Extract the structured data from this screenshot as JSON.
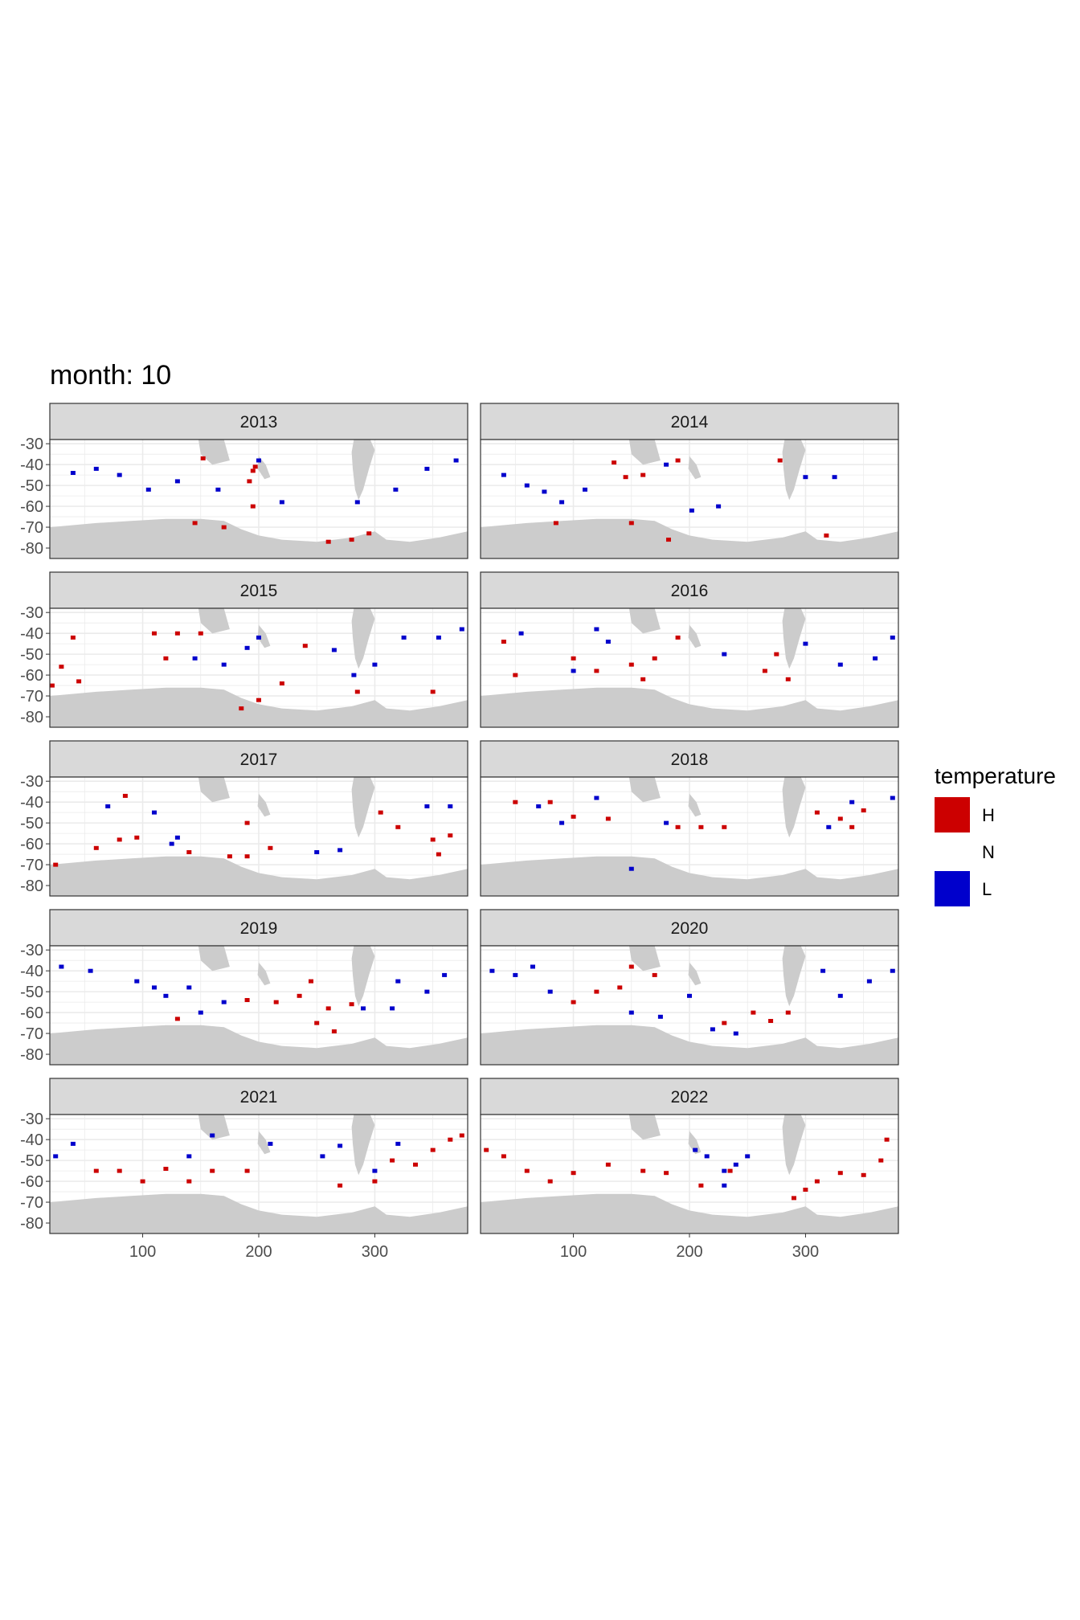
{
  "chart_data": {
    "type": "heatmap",
    "title": "month: 10",
    "xlabel": "",
    "ylabel": "",
    "xlim": [
      20,
      380
    ],
    "ylim": [
      -85,
      -28
    ],
    "x_ticks": [
      "100",
      "200",
      "300"
    ],
    "y_ticks": [
      "-30",
      "-40",
      "-50",
      "-60",
      "-70",
      "-80"
    ],
    "grid": true,
    "legend": {
      "title": "temperature",
      "position": "right",
      "entries": [
        {
          "label": "H",
          "color": "#cc0000"
        },
        {
          "label": "N",
          "color": "#ffffff"
        },
        {
          "label": "L",
          "color": "#0000cc"
        }
      ]
    },
    "land_color": "#cccccc",
    "panels": [
      {
        "label": "2013",
        "H": [
          [
            195,
            -43
          ],
          [
            192,
            -48
          ],
          [
            197,
            -41
          ],
          [
            152,
            -37
          ],
          [
            295,
            -73
          ],
          [
            280,
            -76
          ],
          [
            260,
            -77
          ],
          [
            195,
            -60
          ],
          [
            170,
            -70
          ],
          [
            145,
            -68
          ]
        ],
        "L": [
          [
            40,
            -44
          ],
          [
            60,
            -42
          ],
          [
            80,
            -45
          ],
          [
            105,
            -52
          ],
          [
            130,
            -48
          ],
          [
            165,
            -52
          ],
          [
            200,
            -38
          ],
          [
            220,
            -58
          ],
          [
            318,
            -52
          ],
          [
            345,
            -42
          ],
          [
            370,
            -38
          ],
          [
            285,
            -58
          ]
        ]
      },
      {
        "label": "2014",
        "H": [
          [
            135,
            -39
          ],
          [
            145,
            -46
          ],
          [
            160,
            -45
          ],
          [
            190,
            -38
          ],
          [
            278,
            -38
          ],
          [
            318,
            -74
          ],
          [
            182,
            -76
          ],
          [
            150,
            -68
          ],
          [
            85,
            -68
          ]
        ],
        "L": [
          [
            75,
            -53
          ],
          [
            60,
            -50
          ],
          [
            90,
            -58
          ],
          [
            110,
            -52
          ],
          [
            40,
            -45
          ],
          [
            180,
            -40
          ],
          [
            202,
            -62
          ],
          [
            225,
            -60
          ],
          [
            300,
            -46
          ],
          [
            325,
            -46
          ]
        ]
      },
      {
        "label": "2015",
        "H": [
          [
            110,
            -40
          ],
          [
            130,
            -40
          ],
          [
            150,
            -40
          ],
          [
            40,
            -42
          ],
          [
            30,
            -56
          ],
          [
            45,
            -63
          ],
          [
            22,
            -65
          ],
          [
            240,
            -46
          ],
          [
            220,
            -64
          ],
          [
            200,
            -72
          ],
          [
            185,
            -76
          ],
          [
            285,
            -68
          ],
          [
            350,
            -68
          ],
          [
            120,
            -52
          ]
        ],
        "L": [
          [
            145,
            -52
          ],
          [
            170,
            -55
          ],
          [
            190,
            -47
          ],
          [
            200,
            -42
          ],
          [
            282,
            -60
          ],
          [
            300,
            -55
          ],
          [
            325,
            -42
          ],
          [
            355,
            -42
          ],
          [
            375,
            -38
          ],
          [
            265,
            -48
          ]
        ]
      },
      {
        "label": "2016",
        "H": [
          [
            150,
            -55
          ],
          [
            170,
            -52
          ],
          [
            190,
            -42
          ],
          [
            160,
            -62
          ],
          [
            275,
            -50
          ],
          [
            265,
            -58
          ],
          [
            285,
            -62
          ],
          [
            40,
            -44
          ],
          [
            50,
            -60
          ],
          [
            100,
            -52
          ],
          [
            120,
            -58
          ]
        ],
        "L": [
          [
            120,
            -38
          ],
          [
            130,
            -44
          ],
          [
            100,
            -58
          ],
          [
            230,
            -50
          ],
          [
            300,
            -45
          ],
          [
            330,
            -55
          ],
          [
            360,
            -52
          ],
          [
            375,
            -42
          ],
          [
            55,
            -40
          ]
        ]
      },
      {
        "label": "2017",
        "H": [
          [
            60,
            -62
          ],
          [
            80,
            -58
          ],
          [
            95,
            -57
          ],
          [
            140,
            -64
          ],
          [
            175,
            -66
          ],
          [
            190,
            -66
          ],
          [
            190,
            -50
          ],
          [
            210,
            -62
          ],
          [
            305,
            -45
          ],
          [
            320,
            -52
          ],
          [
            350,
            -58
          ],
          [
            365,
            -56
          ],
          [
            355,
            -65
          ],
          [
            25,
            -70
          ],
          [
            85,
            -37
          ]
        ],
        "L": [
          [
            130,
            -57
          ],
          [
            125,
            -60
          ],
          [
            250,
            -64
          ],
          [
            270,
            -63
          ],
          [
            345,
            -42
          ],
          [
            365,
            -42
          ],
          [
            70,
            -42
          ],
          [
            110,
            -45
          ]
        ]
      },
      {
        "label": "2018",
        "H": [
          [
            50,
            -40
          ],
          [
            80,
            -40
          ],
          [
            100,
            -47
          ],
          [
            130,
            -48
          ],
          [
            190,
            -52
          ],
          [
            210,
            -52
          ],
          [
            230,
            -52
          ],
          [
            310,
            -45
          ],
          [
            330,
            -48
          ],
          [
            340,
            -52
          ],
          [
            350,
            -44
          ]
        ],
        "L": [
          [
            70,
            -42
          ],
          [
            90,
            -50
          ],
          [
            120,
            -38
          ],
          [
            180,
            -50
          ],
          [
            320,
            -52
          ],
          [
            340,
            -40
          ],
          [
            375,
            -38
          ],
          [
            150,
            -72
          ]
        ]
      },
      {
        "label": "2019",
        "H": [
          [
            190,
            -54
          ],
          [
            215,
            -55
          ],
          [
            235,
            -52
          ],
          [
            245,
            -45
          ],
          [
            260,
            -58
          ],
          [
            250,
            -65
          ],
          [
            265,
            -69
          ],
          [
            280,
            -56
          ],
          [
            130,
            -63
          ]
        ],
        "L": [
          [
            30,
            -38
          ],
          [
            55,
            -40
          ],
          [
            95,
            -45
          ],
          [
            110,
            -48
          ],
          [
            120,
            -52
          ],
          [
            140,
            -48
          ],
          [
            170,
            -55
          ],
          [
            150,
            -60
          ],
          [
            290,
            -58
          ],
          [
            320,
            -45
          ],
          [
            345,
            -50
          ],
          [
            360,
            -42
          ],
          [
            315,
            -58
          ]
        ]
      },
      {
        "label": "2020",
        "H": [
          [
            100,
            -55
          ],
          [
            120,
            -50
          ],
          [
            140,
            -48
          ],
          [
            150,
            -38
          ],
          [
            170,
            -42
          ],
          [
            255,
            -60
          ],
          [
            285,
            -60
          ],
          [
            270,
            -64
          ],
          [
            230,
            -65
          ]
        ],
        "L": [
          [
            30,
            -40
          ],
          [
            50,
            -42
          ],
          [
            65,
            -38
          ],
          [
            80,
            -50
          ],
          [
            150,
            -60
          ],
          [
            175,
            -62
          ],
          [
            200,
            -52
          ],
          [
            220,
            -68
          ],
          [
            240,
            -70
          ],
          [
            315,
            -40
          ],
          [
            330,
            -52
          ],
          [
            355,
            -45
          ],
          [
            375,
            -40
          ]
        ]
      },
      {
        "label": "2021",
        "H": [
          [
            60,
            -55
          ],
          [
            80,
            -55
          ],
          [
            100,
            -60
          ],
          [
            120,
            -54
          ],
          [
            140,
            -60
          ],
          [
            160,
            -55
          ],
          [
            190,
            -55
          ],
          [
            270,
            -62
          ],
          [
            300,
            -60
          ],
          [
            315,
            -50
          ],
          [
            335,
            -52
          ],
          [
            350,
            -45
          ],
          [
            365,
            -40
          ],
          [
            375,
            -38
          ]
        ],
        "L": [
          [
            25,
            -48
          ],
          [
            40,
            -42
          ],
          [
            140,
            -48
          ],
          [
            160,
            -38
          ],
          [
            210,
            -42
          ],
          [
            255,
            -48
          ],
          [
            270,
            -43
          ],
          [
            300,
            -55
          ],
          [
            320,
            -42
          ]
        ]
      },
      {
        "label": "2022",
        "H": [
          [
            25,
            -45
          ],
          [
            40,
            -48
          ],
          [
            60,
            -55
          ],
          [
            80,
            -60
          ],
          [
            100,
            -56
          ],
          [
            130,
            -52
          ],
          [
            160,
            -55
          ],
          [
            180,
            -56
          ],
          [
            210,
            -62
          ],
          [
            235,
            -55
          ],
          [
            290,
            -68
          ],
          [
            300,
            -64
          ],
          [
            310,
            -60
          ],
          [
            330,
            -56
          ],
          [
            350,
            -57
          ],
          [
            365,
            -50
          ],
          [
            370,
            -40
          ]
        ],
        "L": [
          [
            205,
            -45
          ],
          [
            215,
            -48
          ],
          [
            230,
            -55
          ],
          [
            240,
            -52
          ],
          [
            250,
            -48
          ],
          [
            230,
            -62
          ]
        ]
      }
    ]
  }
}
